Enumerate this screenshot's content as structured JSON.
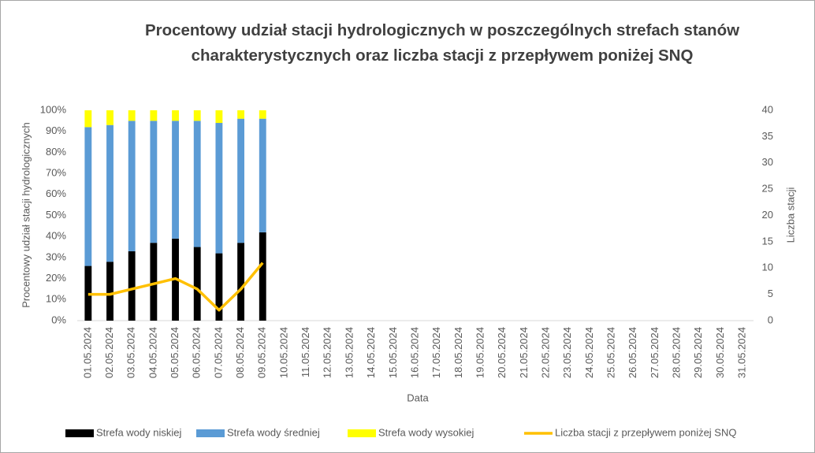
{
  "chart_data": {
    "type": "bar",
    "title": "Procentowy udział stacji hydrologicznych w poszczególnych strefach stanów charakterystycznych oraz liczba stacji z przepływem poniżej SNQ",
    "xlabel": "Data",
    "ylabel": "Procentowy udział stacji hydrologicznych",
    "y2label": "Liczba stacji",
    "stacked": true,
    "categories": [
      "01.05.2024",
      "02.05.2024",
      "03.05.2024",
      "04.05.2024",
      "05.05.2024",
      "06.05.2024",
      "07.05.2024",
      "08.05.2024",
      "09.05.2024",
      "10.05.2024",
      "11.05.2024",
      "12.05.2024",
      "13.05.2024",
      "14.05.2024",
      "15.05.2024",
      "16.05.2024",
      "17.05.2024",
      "18.05.2024",
      "19.05.2024",
      "20.05.2024",
      "21.05.2024",
      "22.05.2024",
      "23.05.2024",
      "24.05.2024",
      "25.05.2024",
      "26.05.2024",
      "27.05.2024",
      "28.05.2024",
      "29.05.2024",
      "30.05.2024",
      "31.05.2024"
    ],
    "series": [
      {
        "name": "Strefa wody niskiej",
        "color": "#000000",
        "values": [
          26,
          28,
          33,
          37,
          39,
          35,
          32,
          37,
          42,
          null,
          null,
          null,
          null,
          null,
          null,
          null,
          null,
          null,
          null,
          null,
          null,
          null,
          null,
          null,
          null,
          null,
          null,
          null,
          null,
          null,
          null
        ]
      },
      {
        "name": "Strefa wody średniej",
        "color": "#5b9bd5",
        "values": [
          66,
          65,
          62,
          58,
          56,
          60,
          62,
          59,
          54,
          null,
          null,
          null,
          null,
          null,
          null,
          null,
          null,
          null,
          null,
          null,
          null,
          null,
          null,
          null,
          null,
          null,
          null,
          null,
          null,
          null,
          null
        ]
      },
      {
        "name": "Strefa wody wysokiej",
        "color": "#ffff00",
        "values": [
          8,
          7,
          5,
          5,
          5,
          5,
          6,
          4,
          4,
          null,
          null,
          null,
          null,
          null,
          null,
          null,
          null,
          null,
          null,
          null,
          null,
          null,
          null,
          null,
          null,
          null,
          null,
          null,
          null,
          null,
          null
        ]
      },
      {
        "name": "Liczba stacji z przepływem poniżej SNQ",
        "color": "#ffc000",
        "type": "line",
        "axis": "y2",
        "values": [
          5,
          5,
          6,
          7,
          8,
          6,
          2,
          6,
          11,
          null,
          null,
          null,
          null,
          null,
          null,
          null,
          null,
          null,
          null,
          null,
          null,
          null,
          null,
          null,
          null,
          null,
          null,
          null,
          null,
          null,
          null
        ]
      }
    ],
    "ylim": [
      0,
      100
    ],
    "yticks": [
      {
        "value": 0,
        "label": "0%"
      },
      {
        "value": 10,
        "label": "10%"
      },
      {
        "value": 20,
        "label": "20%"
      },
      {
        "value": 30,
        "label": "30%"
      },
      {
        "value": 40,
        "label": "40%"
      },
      {
        "value": 50,
        "label": "50%"
      },
      {
        "value": 60,
        "label": "60%"
      },
      {
        "value": 70,
        "label": "70%"
      },
      {
        "value": 80,
        "label": "80%"
      },
      {
        "value": 90,
        "label": "90%"
      },
      {
        "value": 100,
        "label": "100%"
      }
    ],
    "y2lim": [
      0,
      40
    ],
    "y2ticks": [
      0,
      5,
      10,
      15,
      20,
      25,
      30,
      35,
      40
    ],
    "grid": false,
    "legend": "bottom"
  }
}
